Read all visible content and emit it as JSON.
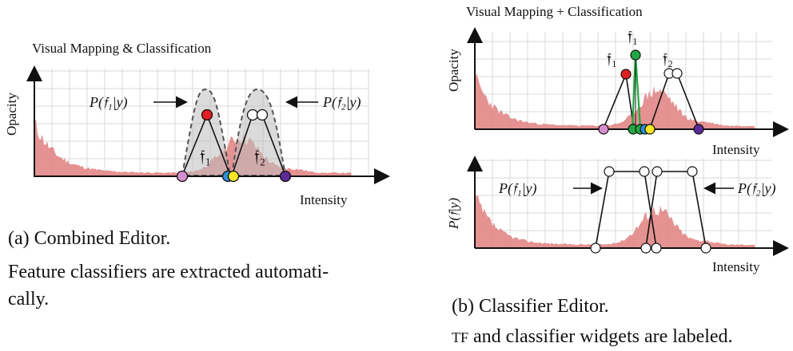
{
  "panel_a": {
    "title": "Visual Mapping & Classification",
    "y_axis_label": "Opacity",
    "x_axis_label": "Intensity",
    "annotation_f1": "P(𝔣₁|y)",
    "annotation_f2": "P(𝔣₂|y)",
    "widget_f1_label": "𝔣₁",
    "widget_f2_label": "𝔣₂",
    "caption": "(a)  Combined Editor.",
    "description_line1": "Feature classifiers are extracted automati-",
    "description_line2": "cally."
  },
  "panel_b_top": {
    "title": "Visual Mapping + Classification",
    "y_axis_label": "Opacity",
    "x_axis_label": "Intensity",
    "widget_f1_label": "𝔣₁",
    "widget_f1_top_label": "𝔣₁",
    "widget_f2_label": "𝔣₂"
  },
  "panel_b_bottom": {
    "y_axis_label": "P(𝔣|y)",
    "x_axis_label": "Intensity",
    "annotation_f1": "P(𝔣₁|y)",
    "annotation_f2": "P(𝔣₂|y)"
  },
  "caption_b": {
    "caption": "(b)  Classifier Editor.",
    "description_prefix": "TF",
    "description_rest": " and classifier widgets are labeled."
  },
  "colors": {
    "histogram": "#e07f7f",
    "grid": "#d9d9d9",
    "node_red": "#e02020",
    "node_green": "#22a843",
    "node_yellow": "#f5e625",
    "node_blue": "#2e8fd6",
    "node_pink": "#d88fcf",
    "node_purple": "#5b2b96",
    "node_white": "#ffffff",
    "classifier_fill": "#c8c8c8"
  }
}
